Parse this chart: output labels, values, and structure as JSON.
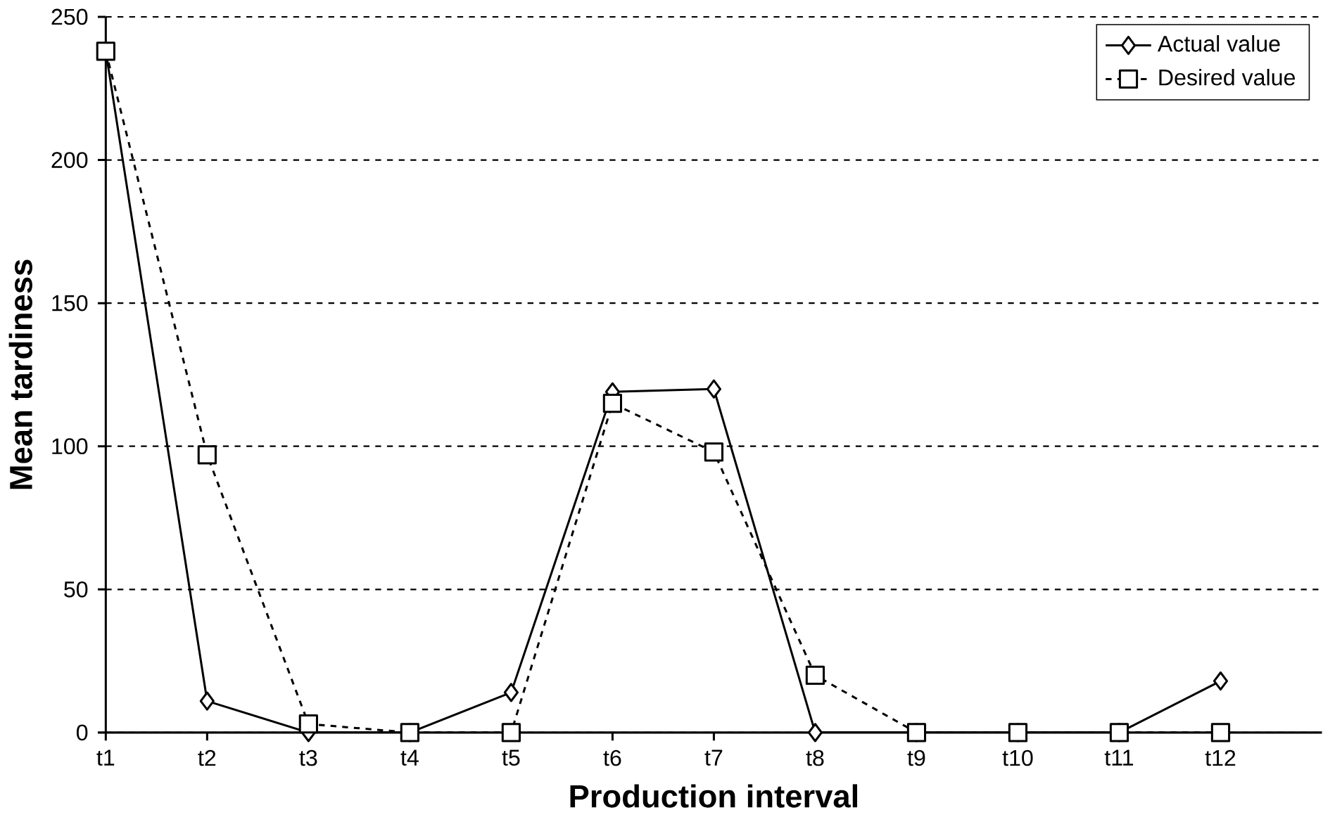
{
  "chart_data": {
    "type": "line",
    "xlabel": "Production interval",
    "ylabel": "Mean tardiness",
    "categories": [
      "t1",
      "t2",
      "t3",
      "t4",
      "t5",
      "t6",
      "t7",
      "t8",
      "t9",
      "t10",
      "t11",
      "t12"
    ],
    "series": [
      {
        "name": "Actual value",
        "color": "#000000",
        "marker": "diamond",
        "line_style": "solid",
        "values": [
          238,
          11,
          0,
          0,
          14,
          119,
          120,
          0,
          0,
          0,
          0,
          18
        ]
      },
      {
        "name": "Desired value",
        "color": "#000000",
        "marker": "square",
        "line_style": "dashed",
        "values": [
          238,
          97,
          3,
          0,
          0,
          115,
          98,
          20,
          0,
          0,
          0,
          0
        ]
      }
    ],
    "ylim": [
      0,
      250
    ],
    "yticks": [
      0,
      50,
      100,
      150,
      200,
      250
    ],
    "grid": "y",
    "legend": "top right"
  }
}
